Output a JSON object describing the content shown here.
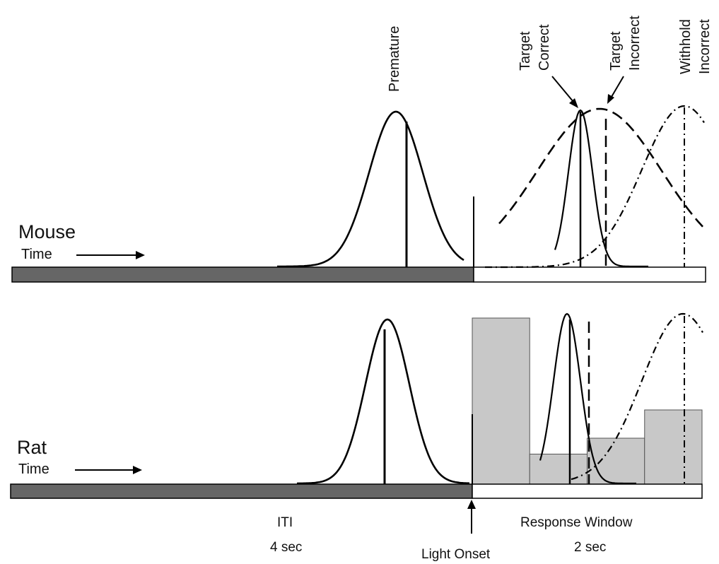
{
  "mouse": {
    "label": "Mouse",
    "time_label": "Time",
    "dist_labels": {
      "premature": "Premature",
      "target_correct": [
        "Target",
        "Correct"
      ],
      "target_incorrect": [
        "Target",
        "Incorrect"
      ],
      "withhold_incorrect": [
        "Withhold",
        "Incorrect"
      ]
    }
  },
  "rat": {
    "label": "Rat",
    "time_label": "Time",
    "bar_levels": [
      0.94,
      0.17,
      0.26,
      0.42
    ]
  },
  "timeline": {
    "iti_label": "ITI",
    "iti_duration": "4 sec",
    "light_onset_label": "Light Onset",
    "response_window_label": "Response Window",
    "response_window_duration": "2 sec"
  },
  "colors": {
    "iti_bar": "#666666",
    "response_bar": "#ffffff",
    "histogram_fill": "#c8c8c8",
    "line": "#000000"
  }
}
